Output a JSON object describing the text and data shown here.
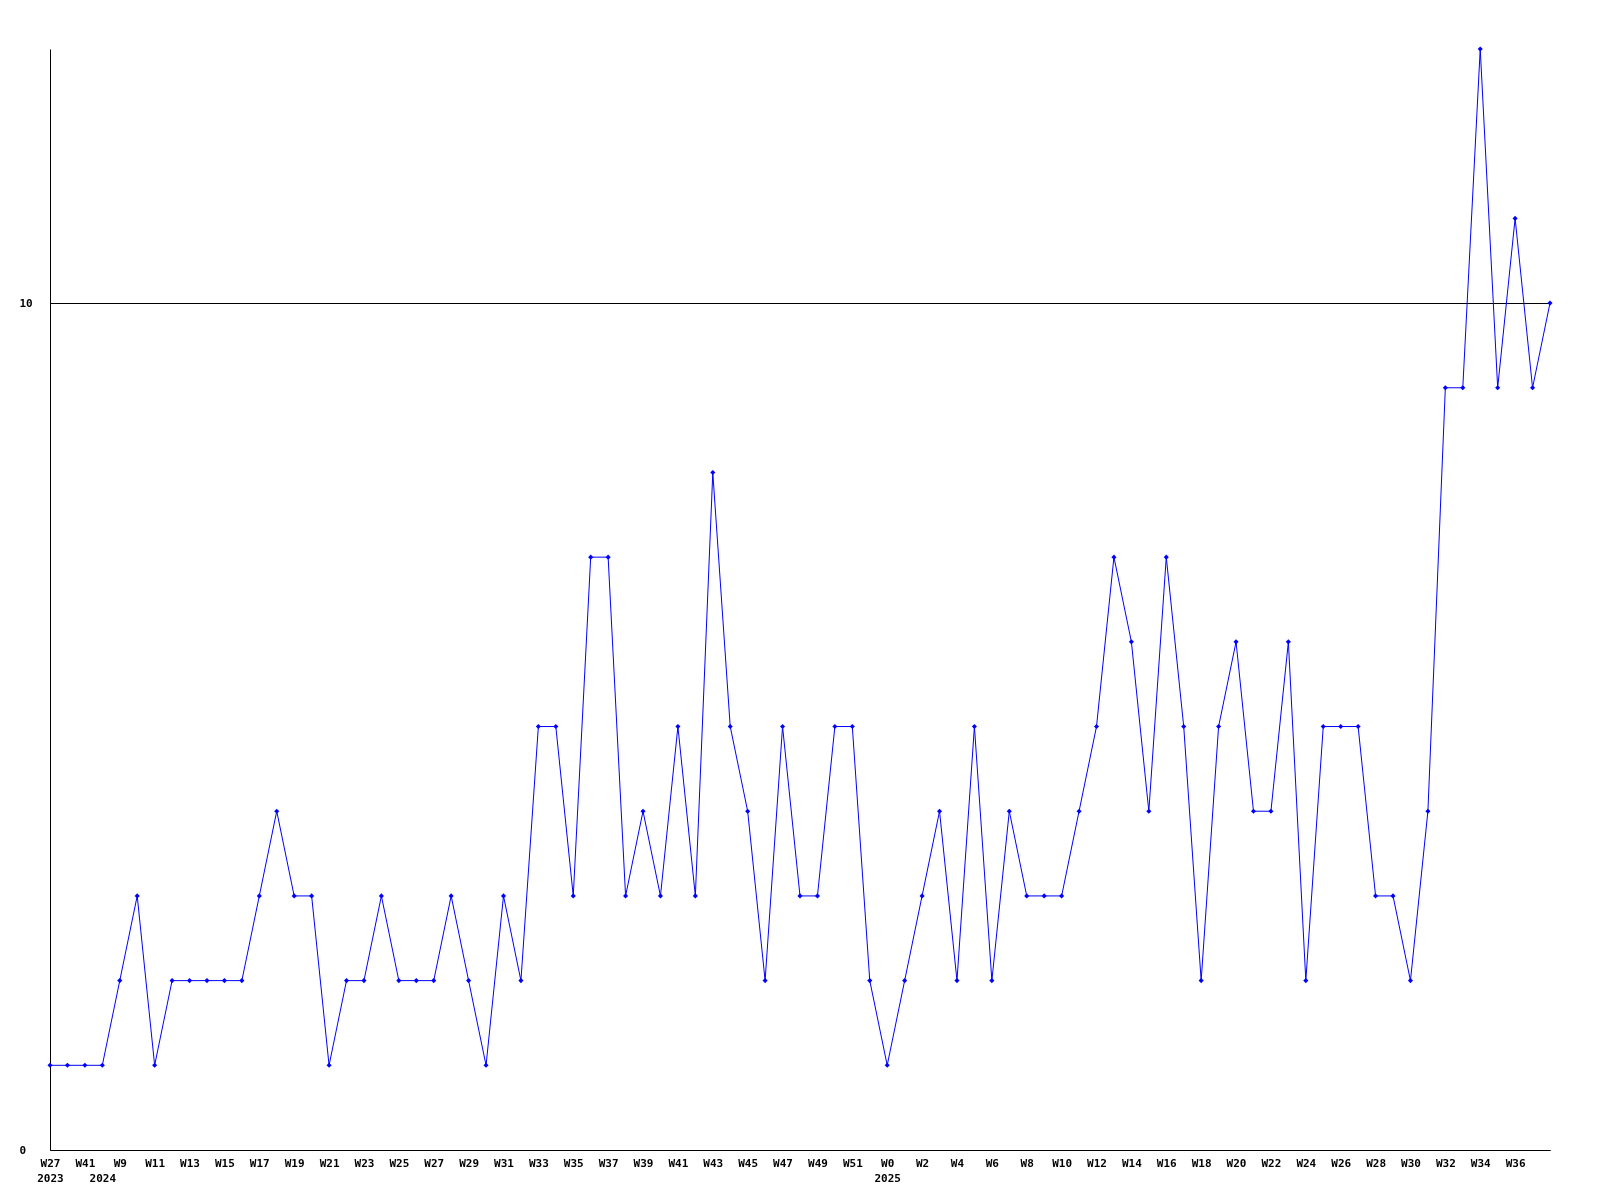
{
  "chart_data": {
    "type": "line",
    "categories": [
      "W27\n2023",
      null,
      "W41",
      "\n2024",
      "W9",
      null,
      "W11",
      null,
      "W13",
      null,
      "W15",
      null,
      "W17",
      null,
      "W19",
      null,
      "W21",
      null,
      "W23",
      null,
      "W25",
      null,
      "W27",
      null,
      "W29",
      null,
      "W31",
      null,
      "W33",
      null,
      "W35",
      null,
      "W37",
      null,
      "W39",
      null,
      "W41",
      null,
      "W43",
      null,
      "W45",
      null,
      "W47",
      null,
      "W49",
      null,
      "W51",
      null,
      "W0\n2025",
      null,
      "W2",
      null,
      "W4",
      null,
      "W6",
      null,
      "W8",
      null,
      "W10",
      null,
      "W12",
      null,
      "W14",
      null,
      "W16",
      null,
      "W18",
      null,
      "W20",
      null,
      "W22",
      null,
      "W24",
      null,
      "W26",
      null,
      "W28",
      null,
      "W30",
      null,
      "W32",
      null,
      "W34",
      null,
      "W36",
      null,
      null
    ],
    "series": [
      {
        "color": "#0000ff",
        "values": [
          1,
          1,
          1,
          1,
          2,
          3,
          1,
          2,
          2,
          2,
          2,
          2,
          3,
          4,
          3,
          3,
          1,
          2,
          2,
          3,
          2,
          2,
          2,
          3,
          2,
          1,
          3,
          2,
          5,
          5,
          3,
          7,
          7,
          3,
          4,
          3,
          5,
          3,
          8,
          5,
          4,
          2,
          5,
          3,
          3,
          5,
          5,
          2,
          1,
          2,
          3,
          4,
          2,
          5,
          2,
          4,
          3,
          3,
          3,
          4,
          5,
          7,
          6,
          4,
          7,
          5,
          2,
          5,
          6,
          4,
          4,
          6,
          2,
          5,
          5,
          5,
          3,
          3,
          2,
          4,
          9,
          9,
          13,
          9,
          11,
          9,
          10
        ]
      }
    ],
    "ylim": [
      0,
      13
    ],
    "yticks": [
      0,
      10
    ],
    "grid": "y",
    "marker": "diamond"
  }
}
